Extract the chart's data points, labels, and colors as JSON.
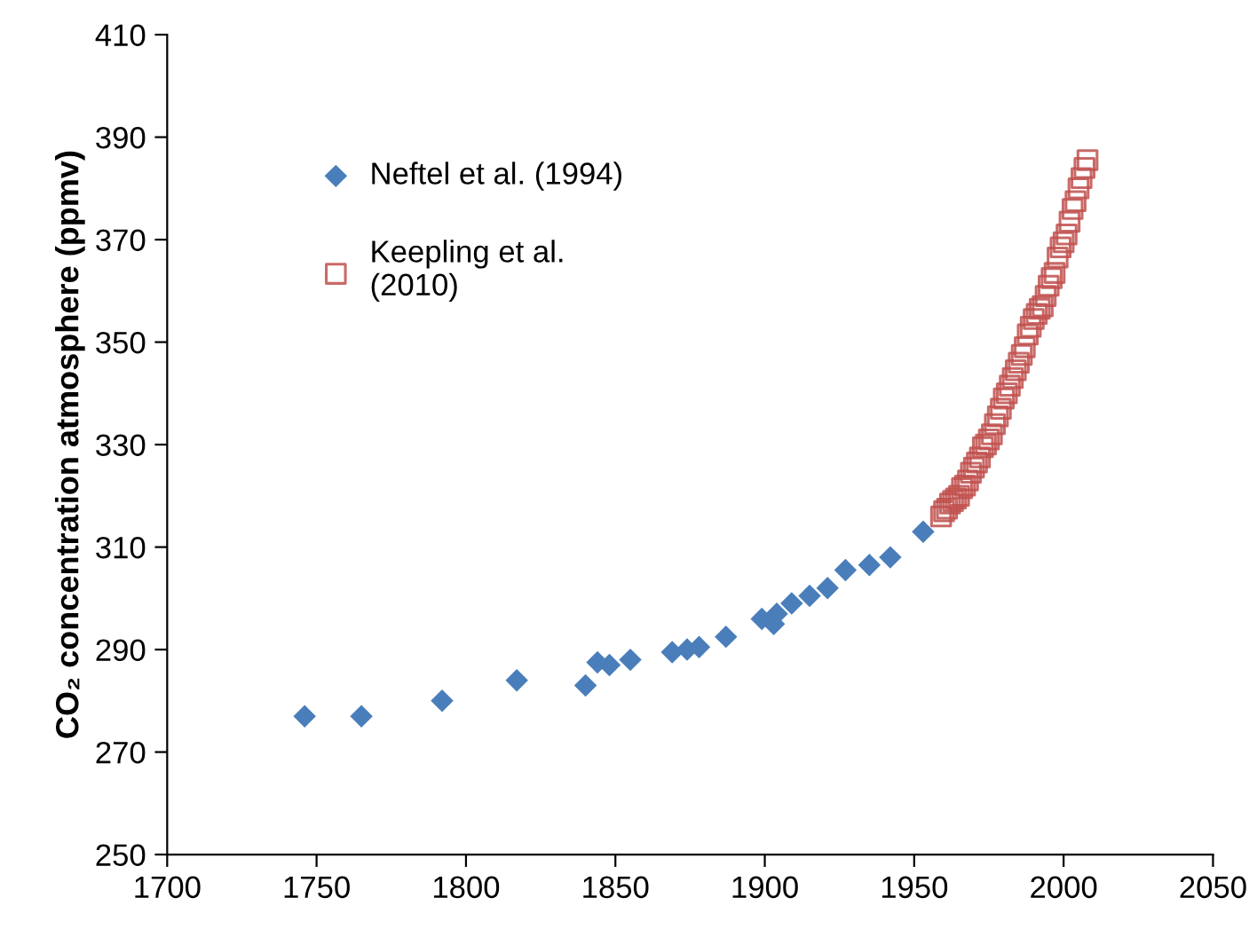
{
  "chart_data": {
    "type": "scatter",
    "ylabel": "CO₂ concentration atmosphere (ppmv)",
    "xlim": [
      1700,
      2050
    ],
    "xticks": [
      1700,
      1750,
      1800,
      1850,
      1900,
      1950,
      2000,
      2050
    ],
    "ylim": [
      250,
      410
    ],
    "yticks": [
      250,
      270,
      290,
      310,
      330,
      350,
      370,
      390,
      410
    ],
    "grid": false,
    "legend": "top left",
    "series": [
      {
        "name": "Neftel et al. (1994)",
        "color": "#4a7ebb",
        "marker": "diamond",
        "x": [
          1746,
          1765,
          1792,
          1817,
          1840,
          1844,
          1848,
          1855,
          1869,
          1874,
          1878,
          1887,
          1899,
          1903,
          1904,
          1909,
          1915,
          1921,
          1927,
          1935,
          1942,
          1953
        ],
        "values": [
          277,
          277,
          280,
          284,
          283,
          287.5,
          287,
          288,
          289.5,
          290,
          290.5,
          292.5,
          296,
          295,
          297,
          299,
          300.5,
          302,
          305.5,
          306.5,
          308,
          313
        ]
      },
      {
        "name": "Keepling et al.\n(2010)",
        "color": "#c0504d",
        "marker": "square",
        "x": [
          1959,
          1960,
          1961,
          1962,
          1963,
          1964,
          1965,
          1966,
          1967,
          1968,
          1969,
          1970,
          1971,
          1972,
          1973,
          1974,
          1975,
          1976,
          1977,
          1978,
          1979,
          1980,
          1981,
          1982,
          1983,
          1984,
          1985,
          1986,
          1987,
          1988,
          1989,
          1990,
          1991,
          1992,
          1993,
          1994,
          1995,
          1996,
          1997,
          1998,
          1999,
          2000,
          2001,
          2002,
          2003,
          2004,
          2005,
          2006,
          2007,
          2008
        ],
        "values": [
          316,
          317,
          317.5,
          318.5,
          319,
          319.5,
          320,
          321.5,
          322,
          323,
          324.5,
          325.5,
          326.5,
          327.5,
          329.5,
          330,
          331,
          332,
          334,
          335.5,
          337,
          339,
          340,
          341.5,
          343,
          344.5,
          346,
          347.5,
          349,
          351.5,
          353,
          354.5,
          355.5,
          356.5,
          357,
          359,
          361,
          362.5,
          363.5,
          366.5,
          368.5,
          369.5,
          371,
          373.5,
          376,
          377.5,
          380,
          382,
          384,
          385.5
        ]
      }
    ]
  }
}
